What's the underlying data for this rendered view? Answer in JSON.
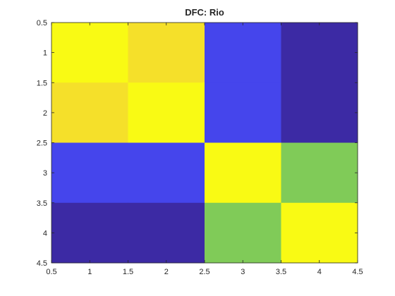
{
  "chart_data": {
    "type": "heatmap",
    "title": "DFC: Rio",
    "xlabel": "",
    "ylabel": "",
    "x": [
      1,
      2,
      3,
      4
    ],
    "y": [
      1,
      2,
      3,
      4
    ],
    "xlim": [
      0.5,
      4.5
    ],
    "ylim": [
      0.5,
      4.5
    ],
    "y_direction": "reverse",
    "xticks": [
      "0.5",
      "1",
      "1.5",
      "2",
      "2.5",
      "3",
      "3.5",
      "4",
      "4.5"
    ],
    "yticks": [
      "0.5",
      "1",
      "1.5",
      "2",
      "2.5",
      "3",
      "3.5",
      "4",
      "4.5"
    ],
    "values": [
      [
        1.0,
        0.92,
        0.18,
        0.0
      ],
      [
        0.92,
        1.0,
        0.18,
        0.0
      ],
      [
        0.18,
        0.18,
        1.0,
        0.65
      ],
      [
        0.0,
        0.0,
        0.65,
        1.0
      ]
    ],
    "cell_colors": [
      [
        "#f9fa14",
        "#f5e02a",
        "#4545ec",
        "#3c2aa4"
      ],
      [
        "#f5e02a",
        "#f9fa14",
        "#4545ec",
        "#3c2aa4"
      ],
      [
        "#4545ec",
        "#4545ec",
        "#f9fa14",
        "#80cb58"
      ],
      [
        "#3c2aa4",
        "#3c2aa4",
        "#80cb58",
        "#f9fa14"
      ]
    ],
    "colormap": "parula",
    "grid": false,
    "legend": "none"
  }
}
